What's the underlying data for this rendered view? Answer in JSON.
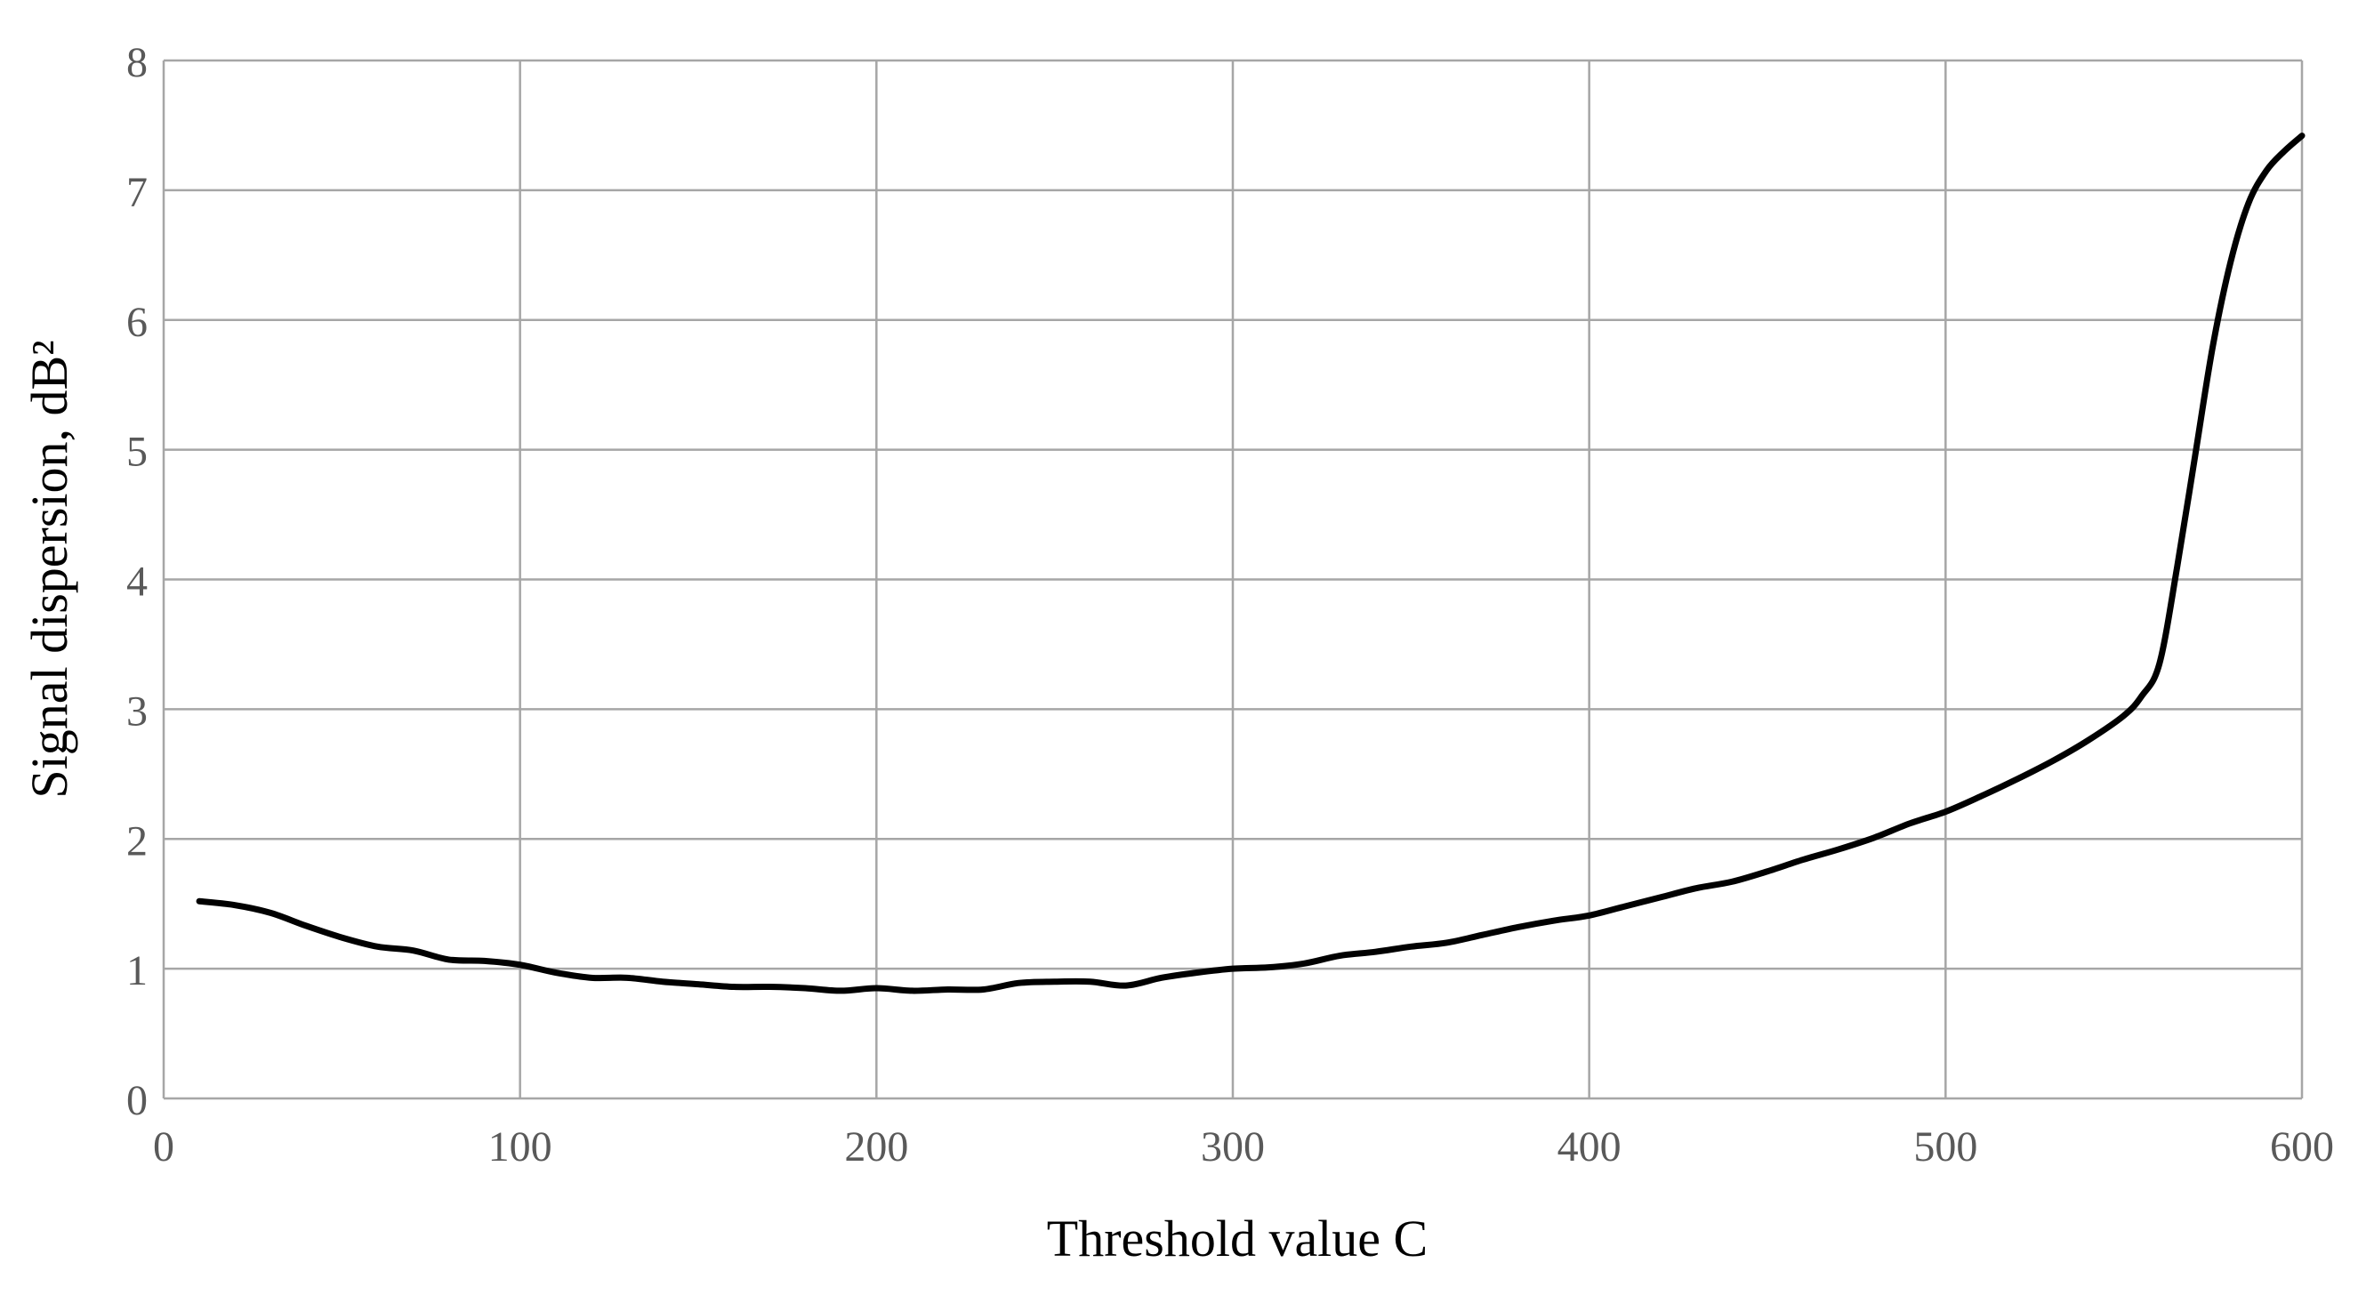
{
  "chart_data": {
    "type": "line",
    "title": "",
    "xlabel": "Threshold value C",
    "ylabel": "Signal dispersion, dB²",
    "xlim": [
      0,
      600
    ],
    "ylim": [
      0,
      8
    ],
    "x_ticks": [
      "0",
      "100",
      "200",
      "300",
      "400",
      "500",
      "600"
    ],
    "y_ticks": [
      "0",
      "1",
      "2",
      "3",
      "4",
      "5",
      "6",
      "7",
      "8"
    ],
    "grid": true,
    "legend": "none",
    "line_color": "#000000",
    "grid_color": "#a6a6a6",
    "series": [
      {
        "x": [
          10,
          20,
          30,
          40,
          50,
          60,
          70,
          80,
          90,
          100,
          110,
          120,
          130,
          140,
          150,
          160,
          170,
          180,
          190,
          200,
          210,
          220,
          230,
          240,
          250,
          260,
          270,
          280,
          290,
          300,
          310,
          320,
          330,
          340,
          350,
          360,
          370,
          380,
          390,
          400,
          410,
          420,
          430,
          440,
          450,
          460,
          470,
          480,
          490,
          500,
          510,
          520,
          530,
          540,
          550,
          555,
          560,
          565,
          570,
          575,
          580,
          585,
          590,
          595,
          600
        ],
        "y": [
          1.52,
          1.49,
          1.43,
          1.33,
          1.24,
          1.17,
          1.14,
          1.07,
          1.06,
          1.03,
          0.97,
          0.93,
          0.93,
          0.9,
          0.88,
          0.86,
          0.86,
          0.85,
          0.83,
          0.85,
          0.83,
          0.84,
          0.84,
          0.89,
          0.9,
          0.9,
          0.87,
          0.93,
          0.97,
          1.0,
          1.01,
          1.04,
          1.1,
          1.13,
          1.17,
          1.2,
          1.26,
          1.32,
          1.37,
          1.41,
          1.48,
          1.55,
          1.62,
          1.67,
          1.75,
          1.84,
          1.92,
          2.01,
          2.12,
          2.21,
          2.33,
          2.46,
          2.6,
          2.76,
          2.95,
          3.1,
          3.35,
          4.1,
          4.95,
          5.8,
          6.45,
          6.9,
          7.15,
          7.3,
          7.42
        ]
      }
    ]
  }
}
